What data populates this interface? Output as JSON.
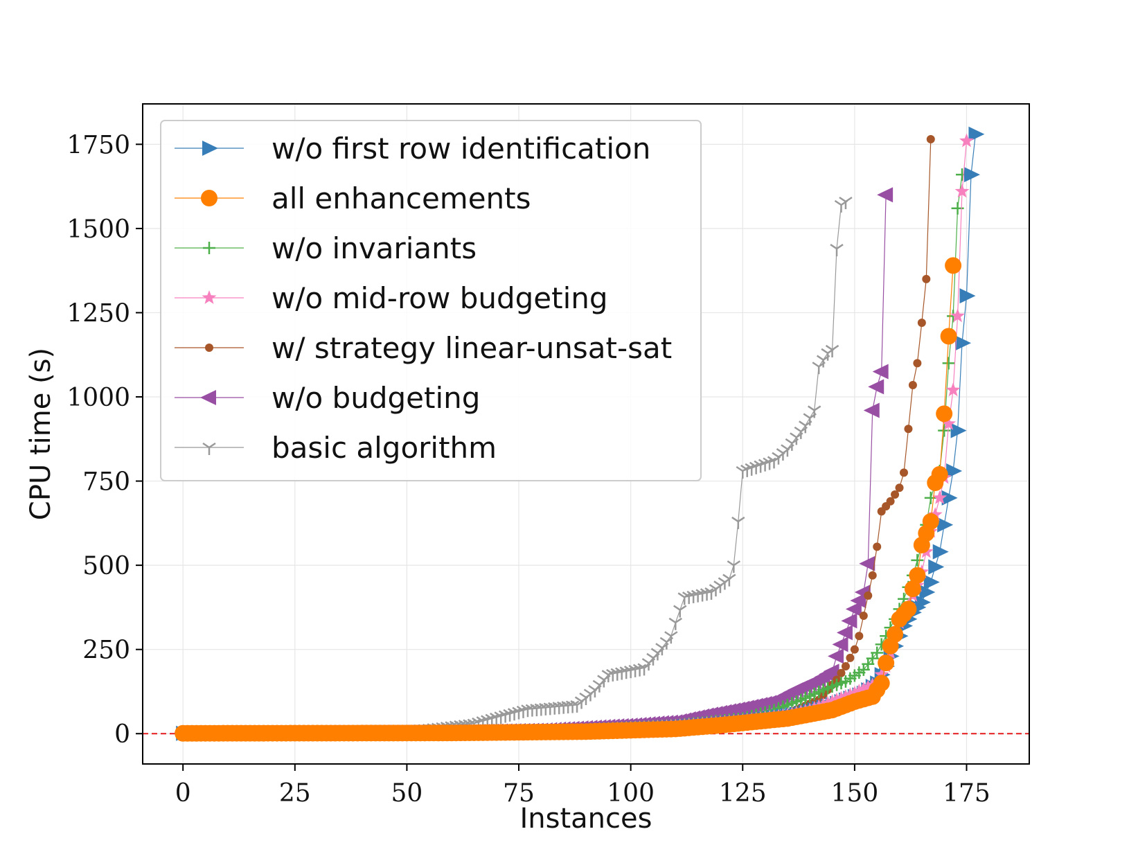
{
  "chart_data": {
    "type": "line",
    "title": "",
    "xlabel": "Instances",
    "ylabel": "CPU time (s)",
    "xlim": [
      -9,
      189
    ],
    "ylim": [
      -90,
      1870
    ],
    "xticks": [
      "0",
      "25",
      "50",
      "75",
      "100",
      "125",
      "150",
      "175"
    ],
    "xtick_values": [
      0,
      25,
      50,
      75,
      100,
      125,
      150,
      175
    ],
    "yticks": [
      "0",
      "250",
      "500",
      "750",
      "1000",
      "1250",
      "1500",
      "1750"
    ],
    "ytick_values": [
      0,
      250,
      500,
      750,
      1000,
      1250,
      1500,
      1750
    ],
    "grid": true,
    "legend_position": "top-left",
    "reference_line": {
      "y": 0,
      "color": "#e41a1c",
      "style": "dashed"
    },
    "series": [
      {
        "name": "basic algorithm",
        "color": "#999999",
        "marker": "tri_down",
        "knots": [
          [
            0,
            2
          ],
          [
            20,
            3
          ],
          [
            45,
            6
          ],
          [
            55,
            15
          ],
          [
            65,
            30
          ],
          [
            72,
            55
          ],
          [
            77,
            72
          ],
          [
            88,
            85
          ],
          [
            92,
            130
          ],
          [
            95,
            175
          ],
          [
            103,
            195
          ],
          [
            107,
            255
          ],
          [
            109,
            290
          ],
          [
            110,
            330
          ],
          [
            112,
            405
          ],
          [
            118,
            420
          ],
          [
            122,
            460
          ],
          [
            123,
            500
          ],
          [
            124,
            630
          ],
          [
            125,
            780
          ],
          [
            132,
            810
          ],
          [
            135,
            845
          ],
          [
            137,
            880
          ],
          [
            139,
            915
          ],
          [
            141,
            960
          ],
          [
            142,
            1090
          ],
          [
            144,
            1130
          ],
          [
            145,
            1140
          ],
          [
            146,
            1440
          ],
          [
            147,
            1570
          ],
          [
            148,
            1580
          ]
        ]
      },
      {
        "name": "w/o budgeting",
        "color": "#984ea3",
        "marker": "triangle_left",
        "knots": [
          [
            0,
            2
          ],
          [
            30,
            3
          ],
          [
            60,
            5
          ],
          [
            80,
            10
          ],
          [
            100,
            25
          ],
          [
            110,
            35
          ],
          [
            117,
            55
          ],
          [
            125,
            75
          ],
          [
            132,
            95
          ],
          [
            137,
            130
          ],
          [
            142,
            160
          ],
          [
            145,
            185
          ],
          [
            146,
            230
          ],
          [
            148,
            300
          ],
          [
            150,
            370
          ],
          [
            152,
            420
          ],
          [
            153,
            505
          ],
          [
            154,
            960
          ],
          [
            155,
            1030
          ],
          [
            156,
            1075
          ],
          [
            157,
            1600
          ]
        ]
      },
      {
        "name": "w/ strategy linear-unsat-sat",
        "color": "#a65628",
        "marker": "small_circle",
        "knots": [
          [
            0,
            1
          ],
          [
            60,
            3
          ],
          [
            90,
            8
          ],
          [
            110,
            15
          ],
          [
            125,
            35
          ],
          [
            135,
            60
          ],
          [
            142,
            100
          ],
          [
            146,
            160
          ],
          [
            148,
            200
          ],
          [
            150,
            250
          ],
          [
            151,
            290
          ],
          [
            152,
            350
          ],
          [
            153,
            410
          ],
          [
            154,
            470
          ],
          [
            155,
            555
          ],
          [
            156,
            660
          ],
          [
            157,
            675
          ],
          [
            158,
            690
          ],
          [
            159,
            710
          ],
          [
            160,
            730
          ],
          [
            161,
            775
          ],
          [
            163,
            1035
          ],
          [
            164,
            1100
          ],
          [
            165,
            1220
          ],
          [
            166,
            1350
          ],
          [
            167,
            1765
          ]
        ]
      },
      {
        "name": "w/o invariants",
        "color": "#4daf4a",
        "marker": "plus",
        "knots": [
          [
            0,
            2
          ],
          [
            60,
            4
          ],
          [
            90,
            12
          ],
          [
            110,
            25
          ],
          [
            125,
            45
          ],
          [
            132,
            70
          ],
          [
            138,
            100
          ],
          [
            143,
            130
          ],
          [
            148,
            155
          ],
          [
            152,
            190
          ],
          [
            155,
            240
          ],
          [
            157,
            290
          ],
          [
            159,
            340
          ],
          [
            161,
            400
          ],
          [
            163,
            470
          ],
          [
            165,
            560
          ],
          [
            166,
            620
          ],
          [
            167,
            700
          ],
          [
            169,
            780
          ],
          [
            170,
            900
          ],
          [
            171,
            1100
          ],
          [
            172,
            1240
          ],
          [
            173,
            1560
          ],
          [
            174,
            1660
          ]
        ]
      },
      {
        "name": "w/o first row identification",
        "color": "#377eb8",
        "marker": "triangle_right",
        "knots": [
          [
            0,
            1
          ],
          [
            60,
            3
          ],
          [
            90,
            8
          ],
          [
            110,
            18
          ],
          [
            125,
            35
          ],
          [
            138,
            60
          ],
          [
            146,
            90
          ],
          [
            152,
            120
          ],
          [
            155,
            150
          ],
          [
            157,
            200
          ],
          [
            159,
            260
          ],
          [
            161,
            320
          ],
          [
            163,
            360
          ],
          [
            165,
            390
          ],
          [
            167,
            450
          ],
          [
            169,
            540
          ],
          [
            170,
            620
          ],
          [
            171,
            700
          ],
          [
            172,
            780
          ],
          [
            173,
            900
          ],
          [
            174,
            1160
          ],
          [
            175,
            1300
          ],
          [
            176,
            1660
          ],
          [
            177,
            1780
          ]
        ]
      },
      {
        "name": "w/o mid-row budgeting",
        "color": "#f781bf",
        "marker": "star",
        "knots": [
          [
            0,
            2
          ],
          [
            60,
            4
          ],
          [
            90,
            10
          ],
          [
            110,
            22
          ],
          [
            125,
            38
          ],
          [
            135,
            55
          ],
          [
            140,
            70
          ],
          [
            145,
            95
          ],
          [
            150,
            120
          ],
          [
            155,
            150
          ],
          [
            157,
            200
          ],
          [
            158,
            240
          ],
          [
            159,
            290
          ],
          [
            160,
            330
          ],
          [
            162,
            380
          ],
          [
            164,
            440
          ],
          [
            165,
            480
          ],
          [
            166,
            540
          ],
          [
            167,
            600
          ],
          [
            168,
            650
          ],
          [
            169,
            700
          ],
          [
            170,
            760
          ],
          [
            171,
            920
          ],
          [
            172,
            1020
          ],
          [
            173,
            1240
          ],
          [
            174,
            1610
          ],
          [
            175,
            1760
          ]
        ]
      },
      {
        "name": "all enhancements",
        "color": "#ff7f00",
        "marker": "big_circle",
        "knots": [
          [
            0,
            1
          ],
          [
            60,
            2
          ],
          [
            90,
            6
          ],
          [
            110,
            14
          ],
          [
            120,
            25
          ],
          [
            135,
            45
          ],
          [
            145,
            70
          ],
          [
            150,
            95
          ],
          [
            154,
            110
          ],
          [
            156,
            150
          ],
          [
            157,
            210
          ],
          [
            158,
            260
          ],
          [
            159,
            295
          ],
          [
            160,
            340
          ],
          [
            162,
            370
          ],
          [
            163,
            430
          ],
          [
            164,
            470
          ],
          [
            165,
            560
          ],
          [
            166,
            595
          ],
          [
            167,
            630
          ],
          [
            168,
            745
          ],
          [
            169,
            770
          ],
          [
            170,
            950
          ],
          [
            171,
            1180
          ],
          [
            172,
            1390
          ]
        ]
      }
    ],
    "legend": [
      {
        "name": "w/o first row identification",
        "color": "#377eb8",
        "marker": "triangle_right"
      },
      {
        "name": "all enhancements",
        "color": "#ff7f00",
        "marker": "big_circle"
      },
      {
        "name": "w/o invariants",
        "color": "#4daf4a",
        "marker": "plus"
      },
      {
        "name": "w/o mid-row budgeting",
        "color": "#f781bf",
        "marker": "star"
      },
      {
        "name": "w/ strategy linear-unsat-sat",
        "color": "#a65628",
        "marker": "small_circle"
      },
      {
        "name": "w/o budgeting",
        "color": "#984ea3",
        "marker": "triangle_left"
      },
      {
        "name": "basic algorithm",
        "color": "#999999",
        "marker": "tri_down"
      }
    ]
  }
}
